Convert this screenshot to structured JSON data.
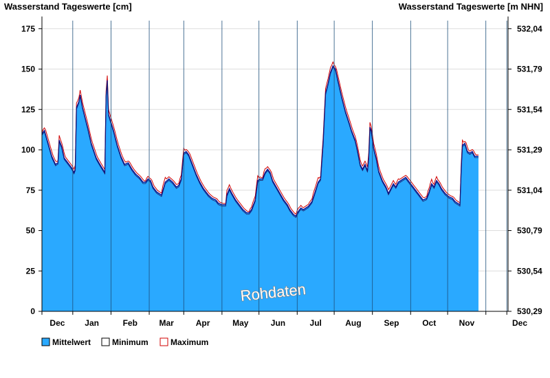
{
  "chart_data": {
    "type": "area",
    "title_left": "Wasserstand Tageswerte [cm]",
    "title_right": "Wasserstand Tageswerte [m NHN]",
    "watermark": "Rohdaten",
    "ylim": [
      0,
      180
    ],
    "y_ticks": [
      0,
      25,
      50,
      75,
      100,
      125,
      150,
      175
    ],
    "y_right_ticks": [
      {
        "value": 0,
        "label": "530,29"
      },
      {
        "value": 25,
        "label": "530,54"
      },
      {
        "value": 50,
        "label": "530,79"
      },
      {
        "value": 75,
        "label": "531,04"
      },
      {
        "value": 100,
        "label": "531,29"
      },
      {
        "value": 125,
        "label": "531,54"
      },
      {
        "value": 150,
        "label": "531,79"
      },
      {
        "value": 175,
        "label": "532,04"
      }
    ],
    "x_days_total": 378,
    "month_boundaries": [
      0,
      25,
      56,
      87,
      115,
      146,
      176,
      207,
      237,
      268,
      299,
      329,
      360,
      377
    ],
    "months": [
      "Dec",
      "Jan",
      "Feb",
      "Mar",
      "Apr",
      "May",
      "Jun",
      "Jul",
      "Aug",
      "Sep",
      "Oct",
      "Nov",
      "Dec"
    ],
    "series": [
      {
        "name": "Mittelwert",
        "color": "#2aa9ff",
        "stroke": "#0b0b8f"
      },
      {
        "name": "Minimum",
        "color": "#ffffff",
        "stroke": "#000000"
      },
      {
        "name": "Maximum",
        "color": "#ffffff",
        "stroke": "#d00000"
      }
    ],
    "keypoints": [
      [
        0,
        110
      ],
      [
        2,
        112
      ],
      [
        5,
        104
      ],
      [
        8,
        96
      ],
      [
        11,
        91
      ],
      [
        13,
        92
      ],
      [
        14,
        106
      ],
      [
        16,
        102
      ],
      [
        18,
        95
      ],
      [
        21,
        92
      ],
      [
        24,
        89
      ],
      [
        26,
        86
      ],
      [
        27,
        88
      ],
      [
        28,
        126
      ],
      [
        30,
        130
      ],
      [
        31,
        134
      ],
      [
        33,
        126
      ],
      [
        35,
        120
      ],
      [
        37,
        114
      ],
      [
        40,
        104
      ],
      [
        44,
        95
      ],
      [
        47,
        91
      ],
      [
        51,
        86
      ],
      [
        52,
        133
      ],
      [
        53,
        143
      ],
      [
        54,
        122
      ],
      [
        56,
        117
      ],
      [
        58,
        112
      ],
      [
        61,
        103
      ],
      [
        64,
        96
      ],
      [
        67,
        91
      ],
      [
        70,
        92
      ],
      [
        73,
        88
      ],
      [
        76,
        85
      ],
      [
        79,
        83
      ],
      [
        82,
        80
      ],
      [
        84,
        80
      ],
      [
        86,
        82
      ],
      [
        88,
        81
      ],
      [
        90,
        77
      ],
      [
        93,
        74
      ],
      [
        97,
        72
      ],
      [
        100,
        80
      ],
      [
        103,
        82
      ],
      [
        106,
        80
      ],
      [
        109,
        77
      ],
      [
        111,
        78
      ],
      [
        113,
        82
      ],
      [
        115,
        98
      ],
      [
        117,
        99
      ],
      [
        119,
        97
      ],
      [
        122,
        91
      ],
      [
        125,
        85
      ],
      [
        128,
        80
      ],
      [
        131,
        76
      ],
      [
        135,
        72
      ],
      [
        138,
        70
      ],
      [
        141,
        69
      ],
      [
        143,
        67
      ],
      [
        146,
        66
      ],
      [
        149,
        66
      ],
      [
        150,
        72
      ],
      [
        152,
        76
      ],
      [
        154,
        73
      ],
      [
        157,
        69
      ],
      [
        160,
        66
      ],
      [
        163,
        63
      ],
      [
        166,
        61
      ],
      [
        168,
        61
      ],
      [
        170,
        63
      ],
      [
        173,
        69
      ],
      [
        175,
        81
      ],
      [
        177,
        82
      ],
      [
        179,
        82
      ],
      [
        181,
        86
      ],
      [
        183,
        88
      ],
      [
        185,
        86
      ],
      [
        187,
        81
      ],
      [
        190,
        77
      ],
      [
        193,
        73
      ],
      [
        196,
        69
      ],
      [
        199,
        66
      ],
      [
        201,
        63
      ],
      [
        204,
        60
      ],
      [
        206,
        59
      ],
      [
        208,
        62
      ],
      [
        210,
        64
      ],
      [
        212,
        63
      ],
      [
        214,
        64
      ],
      [
        216,
        65
      ],
      [
        219,
        68
      ],
      [
        222,
        75
      ],
      [
        224,
        80
      ],
      [
        226,
        82
      ],
      [
        228,
        104
      ],
      [
        230,
        135
      ],
      [
        232,
        141
      ],
      [
        234,
        148
      ],
      [
        236,
        152
      ],
      [
        238,
        150
      ],
      [
        240,
        143
      ],
      [
        243,
        133
      ],
      [
        246,
        124
      ],
      [
        249,
        117
      ],
      [
        251,
        112
      ],
      [
        254,
        106
      ],
      [
        256,
        99
      ],
      [
        258,
        91
      ],
      [
        260,
        88
      ],
      [
        262,
        91
      ],
      [
        264,
        87
      ],
      [
        265,
        95
      ],
      [
        266,
        114
      ],
      [
        267,
        112
      ],
      [
        269,
        101
      ],
      [
        271,
        95
      ],
      [
        273,
        87
      ],
      [
        276,
        81
      ],
      [
        279,
        77
      ],
      [
        281,
        73
      ],
      [
        283,
        76
      ],
      [
        285,
        79
      ],
      [
        287,
        77
      ],
      [
        289,
        80
      ],
      [
        291,
        81
      ],
      [
        293,
        82
      ],
      [
        295,
        83
      ],
      [
        297,
        81
      ],
      [
        300,
        78
      ],
      [
        303,
        75
      ],
      [
        306,
        72
      ],
      [
        309,
        69
      ],
      [
        312,
        70
      ],
      [
        314,
        74
      ],
      [
        316,
        79
      ],
      [
        318,
        77
      ],
      [
        320,
        81
      ],
      [
        322,
        79
      ],
      [
        324,
        76
      ],
      [
        327,
        73
      ],
      [
        330,
        71
      ],
      [
        333,
        70
      ],
      [
        335,
        68
      ],
      [
        337,
        67
      ],
      [
        339,
        66
      ],
      [
        340,
        88
      ],
      [
        341,
        103
      ],
      [
        343,
        104
      ],
      [
        345,
        99
      ],
      [
        347,
        98
      ],
      [
        349,
        99
      ],
      [
        351,
        96
      ],
      [
        354,
        96
      ]
    ]
  },
  "legend": [
    {
      "label": "Mittelwert",
      "swatch": "#2aa9ff",
      "border": "#000000"
    },
    {
      "label": "Minimum",
      "swatch": "#ffffff",
      "border": "#000000"
    },
    {
      "label": "Maximum",
      "swatch": "#ffffff",
      "border": "#d00000"
    }
  ]
}
